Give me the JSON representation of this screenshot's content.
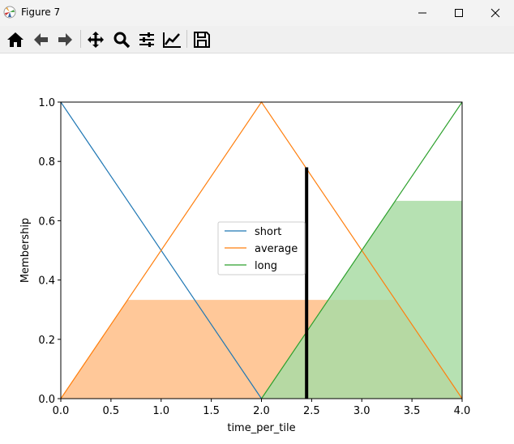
{
  "window": {
    "title": "Figure 7",
    "icons": [
      "matplotlib-icon",
      "minimize-icon",
      "maximize-icon",
      "close-icon"
    ]
  },
  "toolbar": {
    "buttons": [
      {
        "name": "home-icon"
      },
      {
        "name": "back-arrow-icon"
      },
      {
        "name": "forward-arrow-icon"
      },
      {
        "name": "pan-icon"
      },
      {
        "name": "zoom-icon"
      },
      {
        "name": "configure-subplots-icon"
      },
      {
        "name": "edit-axis-icon"
      },
      {
        "name": "save-icon"
      }
    ]
  },
  "chart_data": {
    "type": "line",
    "xlabel": "time_per_tile",
    "ylabel": "Membership",
    "xlim": [
      0,
      4
    ],
    "ylim": [
      0,
      1
    ],
    "xticks": [
      "0.0",
      "0.5",
      "1.0",
      "1.5",
      "2.0",
      "2.5",
      "3.0",
      "3.5",
      "4.0"
    ],
    "yticks": [
      "0.0",
      "0.2",
      "0.4",
      "0.6",
      "0.8",
      "1.0"
    ],
    "grid": false,
    "legend_position": "center",
    "series": [
      {
        "name": "short",
        "color": "#1f77b4",
        "x": [
          0,
          2
        ],
        "y": [
          1,
          0
        ]
      },
      {
        "name": "average",
        "color": "#ff7f0e",
        "x": [
          0,
          2,
          4
        ],
        "y": [
          0,
          1,
          0
        ]
      },
      {
        "name": "long",
        "color": "#2ca02c",
        "x": [
          2,
          4
        ],
        "y": [
          0,
          1
        ]
      }
    ],
    "fills": [
      {
        "of": "average",
        "color": "#ffc899",
        "x": [
          0,
          0.667,
          3.333,
          4
        ],
        "y": [
          0,
          0.333,
          0.333,
          0
        ]
      },
      {
        "of": "long",
        "color": "#a9dca4",
        "x": [
          2,
          3.333,
          4,
          4
        ],
        "y": [
          0,
          0.667,
          0.667,
          0
        ]
      }
    ],
    "vline": {
      "x": 2.45,
      "y": [
        0,
        0.78
      ],
      "color": "#000000"
    }
  }
}
